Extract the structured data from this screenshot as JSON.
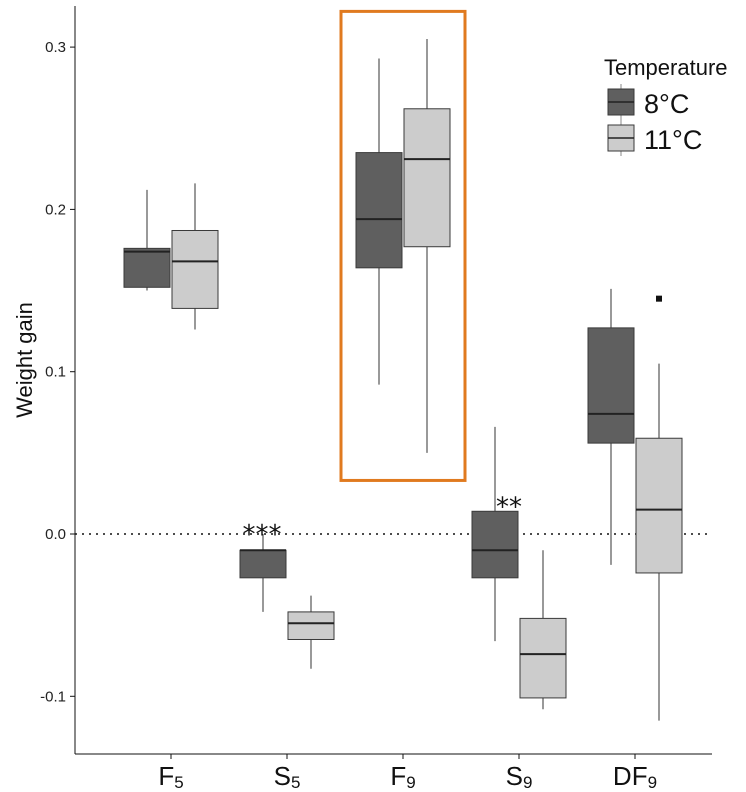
{
  "chart_data": {
    "type": "box",
    "ylabel": "Weight gain",
    "xlabel": "",
    "ylim": [
      -0.135,
      0.325
    ],
    "yticks": [
      -0.1,
      0.0,
      0.1,
      0.2,
      0.3
    ],
    "ytick_labels": [
      "-0.1",
      "0.0",
      "0.1",
      "0.2",
      "0.3"
    ],
    "reference_line": {
      "y": 0.0,
      "style": "dotted"
    },
    "categories": [
      {
        "main": "F",
        "sub": "5"
      },
      {
        "main": "S",
        "sub": "5"
      },
      {
        "main": "F",
        "sub": "9"
      },
      {
        "main": "S",
        "sub": "9"
      },
      {
        "main": "DF",
        "sub": "9"
      }
    ],
    "legend": {
      "title": "Temperature",
      "position": "top-right",
      "entries": [
        {
          "label": "8°C",
          "color": "#5f5f5f"
        },
        {
          "label": "11°C",
          "color": "#cccccc"
        }
      ]
    },
    "series": [
      {
        "name": "8°C",
        "color": "#5f5f5f",
        "boxes": [
          {
            "whisker_low": 0.15,
            "q1": 0.152,
            "median": 0.174,
            "q3": 0.176,
            "whisker_high": 0.212
          },
          {
            "whisker_low": -0.048,
            "q1": -0.027,
            "median": -0.01,
            "q3": -0.01,
            "whisker_high": 0.0
          },
          {
            "whisker_low": 0.092,
            "q1": 0.164,
            "median": 0.194,
            "q3": 0.235,
            "whisker_high": 0.293
          },
          {
            "whisker_low": -0.066,
            "q1": -0.027,
            "median": -0.01,
            "q3": 0.014,
            "whisker_high": 0.066
          },
          {
            "whisker_low": -0.019,
            "q1": 0.056,
            "median": 0.074,
            "q3": 0.127,
            "whisker_high": 0.151
          }
        ]
      },
      {
        "name": "11°C",
        "color": "#cccccc",
        "boxes": [
          {
            "whisker_low": 0.126,
            "q1": 0.139,
            "median": 0.168,
            "q3": 0.187,
            "whisker_high": 0.216
          },
          {
            "whisker_low": -0.083,
            "q1": -0.065,
            "median": -0.055,
            "q3": -0.048,
            "whisker_high": -0.038
          },
          {
            "whisker_low": 0.05,
            "q1": 0.177,
            "median": 0.231,
            "q3": 0.262,
            "whisker_high": 0.305
          },
          {
            "whisker_low": -0.108,
            "q1": -0.101,
            "median": -0.074,
            "q3": -0.052,
            "whisker_high": -0.01
          },
          {
            "whisker_low": -0.115,
            "q1": -0.024,
            "median": 0.015,
            "q3": 0.059,
            "whisker_high": 0.105
          }
        ]
      }
    ],
    "annotations": [
      {
        "text": "***",
        "category_index": 1,
        "y": 0.008
      },
      {
        "text": "**",
        "category_index": 3,
        "y": 0.025
      },
      {
        "text": "·",
        "category_index": 4,
        "y": 0.145,
        "style": "square-dot"
      }
    ],
    "highlight": {
      "category_index": 2,
      "color": "#e07a1f",
      "y_range": [
        0.033,
        0.322
      ]
    }
  }
}
